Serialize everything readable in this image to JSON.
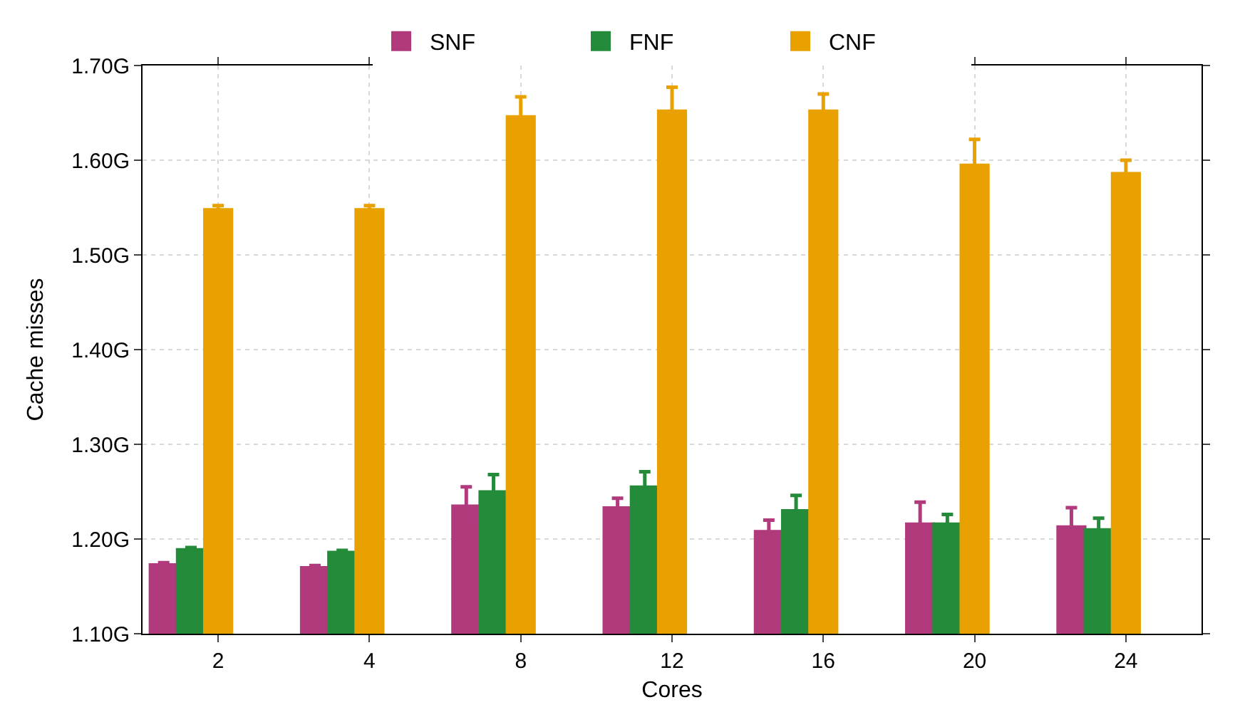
{
  "chart_data": {
    "type": "bar",
    "xlabel": "Cores",
    "ylabel": "Cache misses",
    "categories": [
      "2",
      "4",
      "8",
      "12",
      "16",
      "20",
      "24"
    ],
    "series": [
      {
        "name": "SNF",
        "color": "#b03a7c",
        "values": [
          1.173,
          1.17,
          1.235,
          1.233,
          1.208,
          1.216,
          1.213
        ],
        "errors": [
          0.002,
          0.002,
          0.02,
          0.01,
          0.012,
          0.023,
          0.02
        ]
      },
      {
        "name": "FNF",
        "color": "#238b3a",
        "values": [
          1.189,
          1.186,
          1.25,
          1.255,
          1.23,
          1.216,
          1.21
        ],
        "errors": [
          0.002,
          0.002,
          0.018,
          0.016,
          0.016,
          0.01,
          0.012
        ]
      },
      {
        "name": "CNF",
        "color": "#e8a100",
        "values": [
          1.548,
          1.548,
          1.646,
          1.652,
          1.652,
          1.595,
          1.586
        ],
        "errors": [
          0.004,
          0.004,
          0.021,
          0.025,
          0.018,
          0.027,
          0.014
        ]
      }
    ],
    "ylim": [
      1.1,
      1.7
    ],
    "yticks": [
      {
        "value": 1.1,
        "label": "1.10G"
      },
      {
        "value": 1.2,
        "label": "1.20G"
      },
      {
        "value": 1.3,
        "label": "1.30G"
      },
      {
        "value": 1.4,
        "label": "1.40G"
      },
      {
        "value": 1.5,
        "label": "1.50G"
      },
      {
        "value": 1.6,
        "label": "1.60G"
      },
      {
        "value": 1.7,
        "label": "1.70G"
      }
    ],
    "grid": true,
    "legend": "top"
  }
}
